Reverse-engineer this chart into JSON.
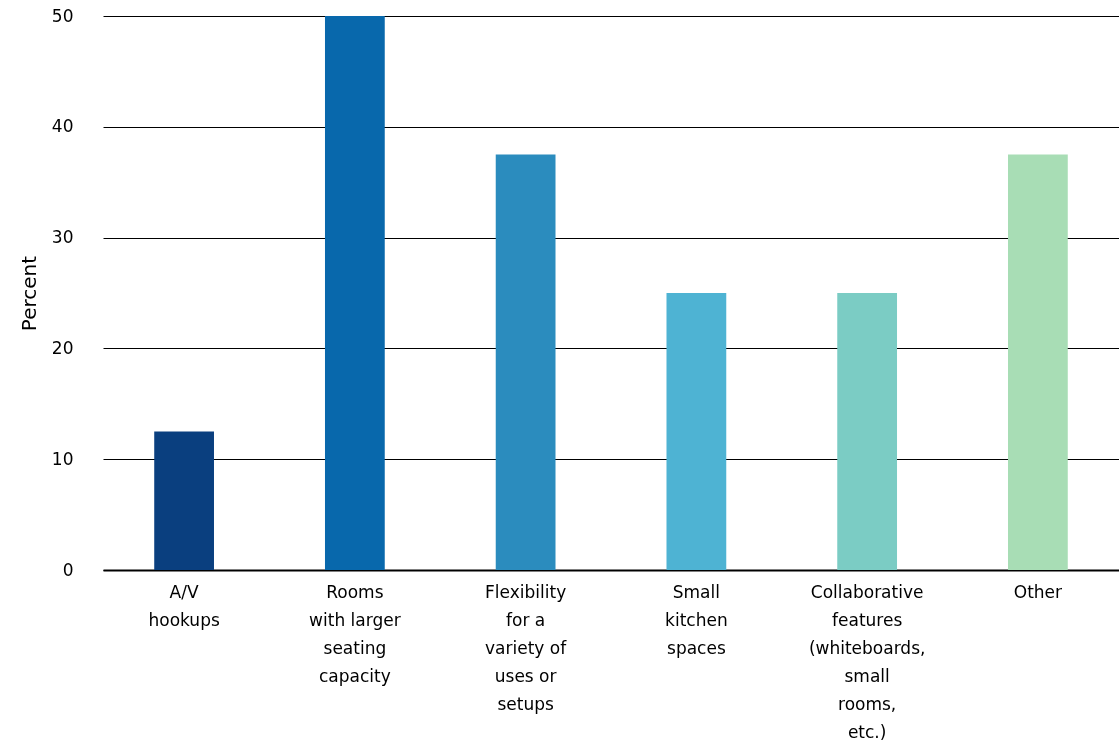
{
  "chart_data": {
    "type": "bar",
    "ylabel": "Percent",
    "categories": [
      "A/V\nhookups",
      "Rooms\nwith larger\nseating\ncapacity",
      "Flexibility\nfor a\nvariety of\nuses or\nsetups",
      "Small\nkitchen\nspaces",
      "Collaborative\nfeatures\n(whiteboards,\nsmall\nrooms,\netc.)",
      "Other"
    ],
    "values": [
      12.5,
      50,
      37.5,
      25,
      25,
      37.5
    ],
    "colors": [
      "#0a3f7f",
      "#0868ac",
      "#2b8cbe",
      "#4eb3d3",
      "#7bccc4",
      "#a8ddb5"
    ],
    "ylim": [
      0,
      50
    ],
    "yticks": [
      0,
      10,
      20,
      30,
      40,
      50
    ],
    "grid": "y"
  }
}
